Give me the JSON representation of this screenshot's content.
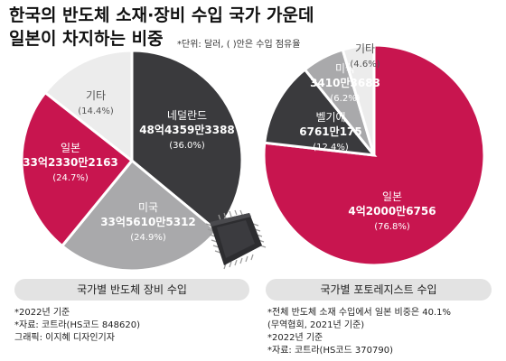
{
  "header": {
    "title_line1": "한국의 반도체 소재·장비 수입 국가 가운데",
    "title_line2": "일본이 차지하는 비중",
    "unit_note": "*단위: 달러, ( )안은 수입 점유율"
  },
  "chart_data": [
    {
      "type": "pie",
      "caption": "국가별 반도체 장비 수입",
      "start_angle_deg": 0,
      "slices": [
        {
          "name": "네덜란드",
          "value": 4843593388,
          "value_text": "48억4359만3388",
          "share": 36.0,
          "share_text": "(36.0%)",
          "color": "#3a3a3d"
        },
        {
          "name": "미국",
          "value": 3356105312,
          "value_text": "33억5610만5312",
          "share": 24.9,
          "share_text": "(24.9%)",
          "color": "#a9a9ab"
        },
        {
          "name": "일본",
          "value": 3323302163,
          "value_text": "33억2330만2163",
          "share": 24.7,
          "share_text": "(24.7%)",
          "color": "#c8154f"
        },
        {
          "name": "기타",
          "value": null,
          "value_text": "",
          "share": 14.4,
          "share_text": "(14.4%)",
          "color": "#ececec"
        }
      ]
    },
    {
      "type": "pie",
      "caption": "국가별 포토레지스트 수입",
      "start_angle_deg": 0,
      "slices": [
        {
          "name": "일본",
          "value": 420006756,
          "value_text": "4억2000만6756",
          "share": 76.8,
          "share_text": "(76.8%)",
          "color": "#c8154f"
        },
        {
          "name": "벨기에",
          "value": 67610175,
          "value_text": "6761만175",
          "share": 12.4,
          "share_text": "(12.4%)",
          "color": "#3a3a3d"
        },
        {
          "name": "미국",
          "value": 34103683,
          "value_text": "3410만3683",
          "share": 6.2,
          "share_text": "(6.2%)",
          "color": "#a9a9ab"
        },
        {
          "name": "기타",
          "value": null,
          "value_text": "",
          "share": 4.6,
          "share_text": "(4.6%)",
          "color": "#ececec"
        }
      ]
    }
  ],
  "notes_left": [
    "*2022년 기준",
    "*자료: 코트라(HS코드 848620)",
    "그래픽: 이지혜 디자인기자"
  ],
  "notes_right": [
    "*전체 반도체 소재 수입에서 일본 비중은 40.1%",
    "(무역협회, 2021년 기준)",
    "*2022년 기준",
    "*자료: 코트라(HS코드 370790)"
  ]
}
